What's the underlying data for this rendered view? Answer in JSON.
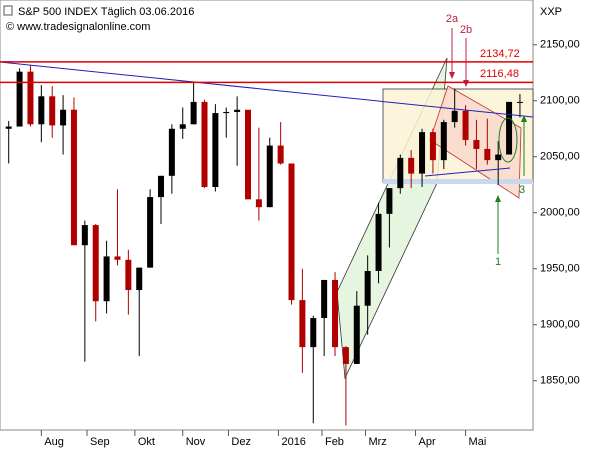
{
  "chart_data": {
    "type": "candlestick",
    "title": "S&P 500 INDEX Täglich  03.06.2016",
    "subtitle": "© www.tradesignalonline.com",
    "y_axis_label": "XXP",
    "open": [
      2075,
      2077,
      2126,
      2079,
      2104,
      2078,
      2092,
      1971,
      1989,
      1921,
      1961,
      1958,
      1931,
      1951,
      2014,
      2033,
      2075,
      2079,
      2099,
      2023,
      2089,
      2090,
      2092,
      2012,
      2005,
      2060,
      2044,
      1922,
      1880,
      1906,
      1940,
      1880,
      1865,
      1917,
      1948,
      1999,
      2022,
      2049,
      2035,
      2072,
      2047,
      2081,
      2091,
      2065,
      2057,
      2047,
      2052,
      2099
    ],
    "high": [
      2082,
      2129,
      2132,
      2114,
      2113,
      2105,
      2103,
      1993,
      1990,
      1975,
      2021,
      1967,
      1951,
      2021,
      2033,
      2079,
      2094,
      2116,
      2101,
      2097,
      2094,
      2104,
      2090,
      2076,
      2067,
      2081,
      2044,
      1950,
      1908,
      1940,
      1947,
      1881,
      1930,
      1962,
      2009,
      2022,
      2052,
      2056,
      2075,
      2075,
      2083,
      2111,
      2096,
      2083,
      2084,
      2064,
      2099,
      2106
    ],
    "low": [
      2044,
      2077,
      2077,
      2063,
      2067,
      2052,
      1971,
      1867,
      1903,
      1910,
      1953,
      1909,
      1872,
      1951,
      1990,
      2017,
      2066,
      2079,
      2022,
      2019,
      2067,
      2042,
      2012,
      1993,
      2005,
      2043,
      1918,
      1857,
      1812,
      1872,
      1872,
      1810,
      1865,
      1891,
      1937,
      1969,
      2017,
      2022,
      2023,
      2035,
      2039,
      2076,
      2060,
      2039,
      2043,
      2025,
      2052,
      2085
    ],
    "close": [
      2077,
      2126,
      2079,
      2104,
      2078,
      2092,
      1971,
      1989,
      1921,
      1961,
      1958,
      1931,
      1951,
      2014,
      2033,
      2075,
      2079,
      2099,
      2023,
      2089,
      2090,
      2092,
      2012,
      2005,
      2060,
      2044,
      1922,
      1880,
      1906,
      1940,
      1880,
      1865,
      1917,
      1948,
      1999,
      2022,
      2049,
      2035,
      2072,
      2047,
      2081,
      2091,
      2065,
      2057,
      2047,
      2052,
      2099,
      2099
    ],
    "up_color": "#000000",
    "down_color": "#b00000",
    "xlim": [
      -0.8,
      48.2
    ],
    "xticks": [
      {
        "value": 3.0,
        "label": "Aug"
      },
      {
        "value": 7.2,
        "label": "Sep"
      },
      {
        "value": 11.6,
        "label": "Okt"
      },
      {
        "value": 16.0,
        "label": "Nov"
      },
      {
        "value": 20.2,
        "label": "Dez"
      },
      {
        "value": 24.8,
        "label": "2016"
      },
      {
        "value": 28.8,
        "label": "Feb"
      },
      {
        "value": 32.8,
        "label": "Mrz"
      },
      {
        "value": 37.4,
        "label": "Apr"
      },
      {
        "value": 42.0,
        "label": "Mai"
      }
    ],
    "ylim": [
      1806,
      2190
    ],
    "yticks": [
      {
        "value": 1850,
        "label": "1850,00"
      },
      {
        "value": 1900,
        "label": "1900,00"
      },
      {
        "value": 1950,
        "label": "1950,00"
      },
      {
        "value": 2000,
        "label": "2000,00"
      },
      {
        "value": 2050,
        "label": "2050,00"
      },
      {
        "value": 2100,
        "label": "2100,00"
      },
      {
        "value": 2150,
        "label": "2150,00"
      }
    ],
    "levels": [
      {
        "value": 2134.72,
        "label": "2134,72",
        "color": "#e00000"
      },
      {
        "value": 2116.48,
        "label": "2116,48",
        "color": "#e00000"
      }
    ],
    "annotations": [
      "2a",
      "2b",
      "1",
      "3"
    ]
  }
}
